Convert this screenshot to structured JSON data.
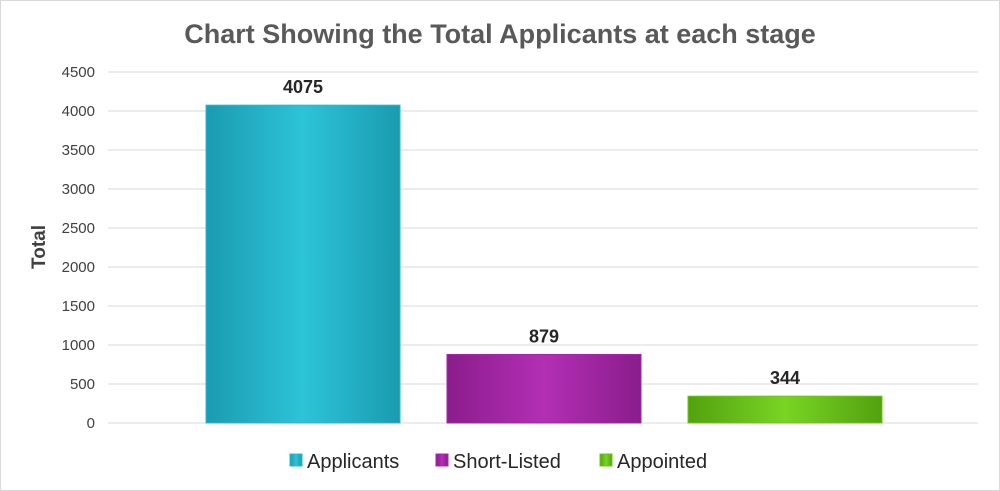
{
  "chart_data": {
    "type": "bar",
    "title": "Chart Showing the Total Applicants at each stage",
    "ylabel": "Total",
    "xlabel": "",
    "ylim": [
      0,
      4500
    ],
    "yticks": [
      0,
      500,
      1000,
      1500,
      2000,
      2500,
      3000,
      3500,
      4000,
      4500
    ],
    "grid": true,
    "legend_position": "bottom",
    "series": [
      {
        "name": "Applicants",
        "value": 4075,
        "color": "#2ab8cc"
      },
      {
        "name": "Short-Listed",
        "value": 879,
        "color": "#a328a5"
      },
      {
        "name": "Appointed",
        "value": 344,
        "color": "#6cc51a"
      }
    ]
  }
}
